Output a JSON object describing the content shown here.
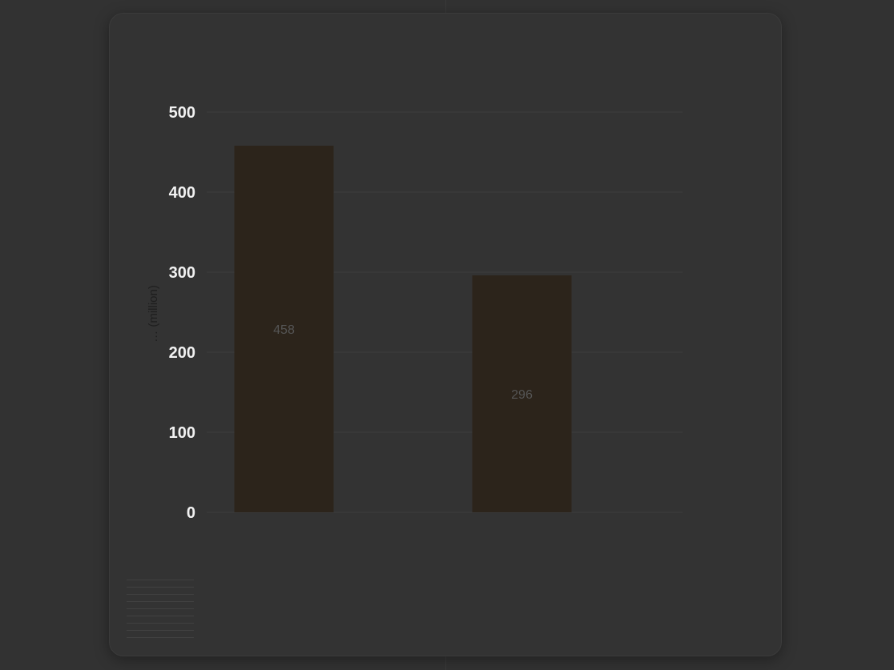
{
  "chart_data": {
    "type": "bar",
    "title": "",
    "categories": [
      "",
      ""
    ],
    "values": [
      458,
      296
    ],
    "data_labels": [
      "458",
      "296"
    ],
    "xlabel": "",
    "ylabel": "… (million)",
    "ylim": [
      0,
      500
    ],
    "yticks": [
      "0",
      "100",
      "200",
      "300",
      "400",
      "500"
    ],
    "grid": true,
    "bar_color": "#2c241b",
    "label_color": "#555555",
    "legend": "none"
  },
  "footer": {
    "label": "",
    "text": ""
  },
  "colors": {
    "background": "#323232",
    "card": "#333333",
    "text": "#f2f2f2",
    "grid": "#3c3c3c"
  }
}
